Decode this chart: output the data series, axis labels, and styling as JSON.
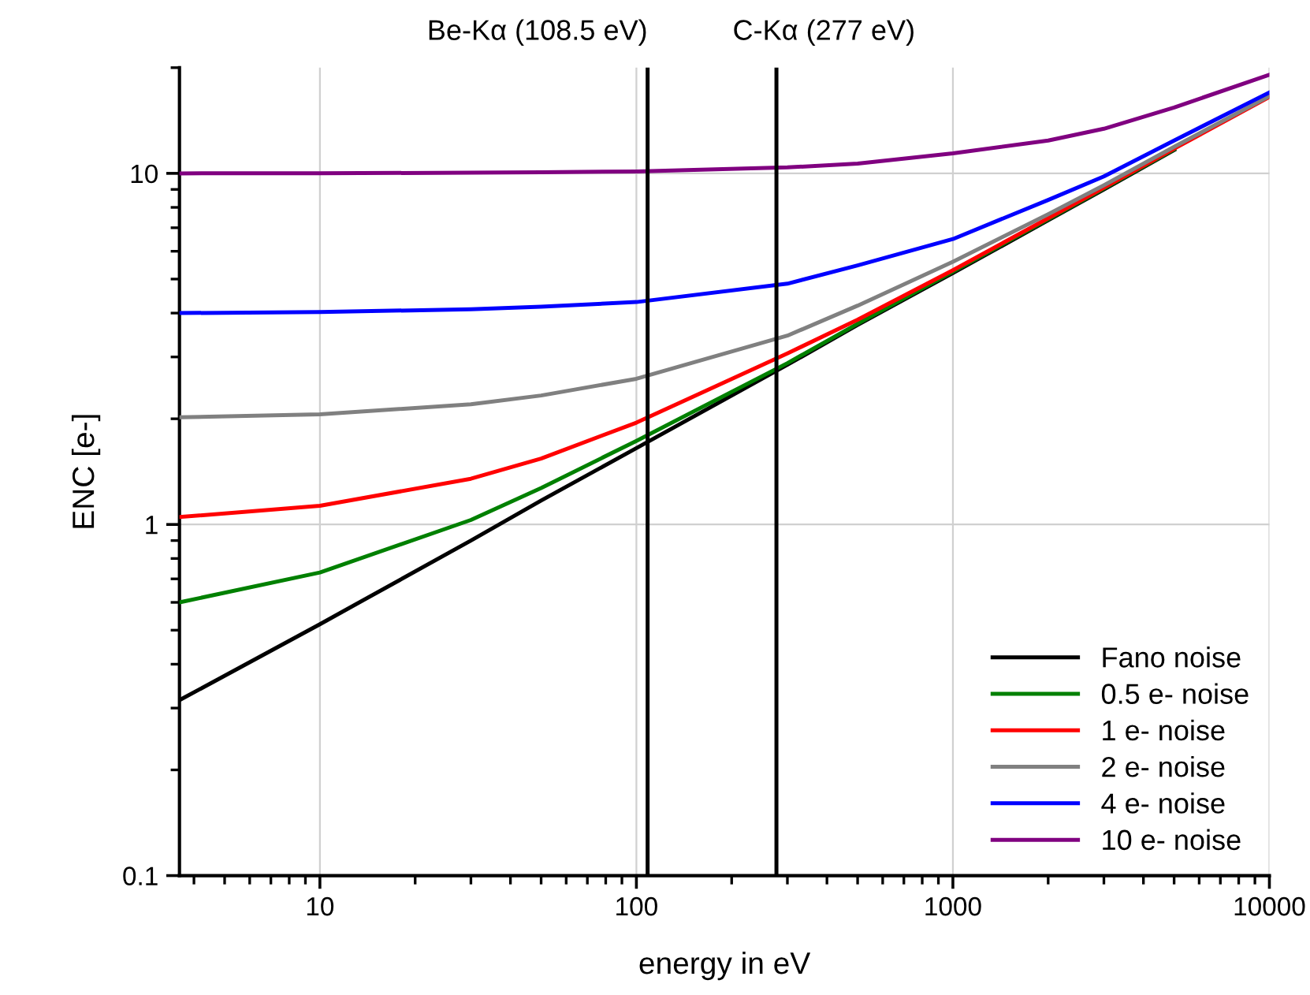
{
  "chart_data": {
    "type": "line",
    "xlabel": "energy in eV",
    "ylabel": "ENC [e-]",
    "log": "xy",
    "x": [
      3.6,
      10,
      30,
      50,
      100,
      300,
      500,
      1000,
      2000,
      3000,
      5000,
      10000
    ],
    "series": [
      {
        "name": "Fano noise",
        "color": "#000000",
        "values": [
          0.316,
          0.52,
          0.9,
          1.17,
          1.65,
          2.85,
          3.7,
          5.2,
          7.35,
          9.0,
          11.65,
          null
        ]
      },
      {
        "name": "0.5 e- noise",
        "color": "#008000",
        "values": [
          0.6,
          0.73,
          1.03,
          1.27,
          1.73,
          2.88,
          3.73,
          5.25,
          7.4,
          9.05,
          11.7,
          null
        ]
      },
      {
        "name": "1 e- noise",
        "color": "#ff0000",
        "values": [
          1.05,
          1.13,
          1.35,
          1.54,
          1.95,
          3.07,
          3.83,
          5.3,
          7.45,
          9.1,
          11.75,
          16.5
        ]
      },
      {
        "name": "2 e- noise",
        "color": "#808080",
        "values": [
          2.02,
          2.06,
          2.2,
          2.33,
          2.6,
          3.45,
          4.2,
          5.6,
          7.65,
          9.25,
          11.9,
          16.6
        ]
      },
      {
        "name": "4 e- noise",
        "color": "#0000ff",
        "values": [
          4.0,
          4.03,
          4.1,
          4.17,
          4.3,
          4.85,
          5.47,
          6.5,
          8.4,
          9.8,
          12.4,
          17.0
        ]
      },
      {
        "name": "10 e- noise",
        "color": "#800080",
        "values": [
          10.0,
          10.01,
          10.04,
          10.07,
          10.13,
          10.4,
          10.66,
          11.4,
          12.4,
          13.4,
          15.4,
          19.1
        ]
      }
    ],
    "xlim": [
      3.6,
      10000
    ],
    "ylim": [
      0.1,
      20
    ],
    "xticks": [
      10,
      100,
      1000,
      10000
    ],
    "yticks": [
      0.1,
      1,
      10
    ],
    "ref_lines": [
      {
        "axis": "x",
        "value": 108.5,
        "label": "Be-Kα (108.5 eV)",
        "color": "#000000"
      },
      {
        "axis": "x",
        "value": 277,
        "label": "C-Kα (277 eV)",
        "color": "#000000"
      }
    ],
    "grid": true,
    "legend": "bottom right",
    "marker": "none",
    "line_style": "solid"
  }
}
